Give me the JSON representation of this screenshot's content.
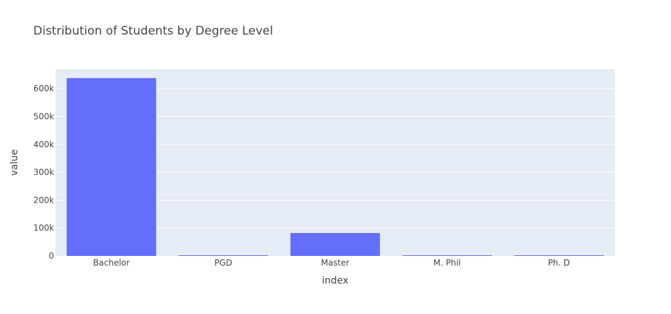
{
  "colors": {
    "plot_background": "#e5ecf6",
    "gridline": "#ffffff",
    "bar": "#636efa",
    "text": "#444444"
  },
  "chart_data": {
    "type": "bar",
    "title": "Distribution of Students by Degree Level",
    "xlabel": "index",
    "ylabel": "value",
    "categories": [
      "Bachelor",
      "PGD",
      "Master",
      "M. Phil",
      "Ph. D"
    ],
    "values": [
      638000,
      500,
      82000,
      1200,
      1800
    ],
    "ylim": [
      0,
      670000
    ],
    "yticks": [
      0,
      100000,
      200000,
      300000,
      400000,
      500000,
      600000
    ],
    "ytick_labels": [
      "0",
      "100k",
      "200k",
      "300k",
      "400k",
      "500k",
      "600k"
    ],
    "grid": true,
    "legend": "none"
  }
}
